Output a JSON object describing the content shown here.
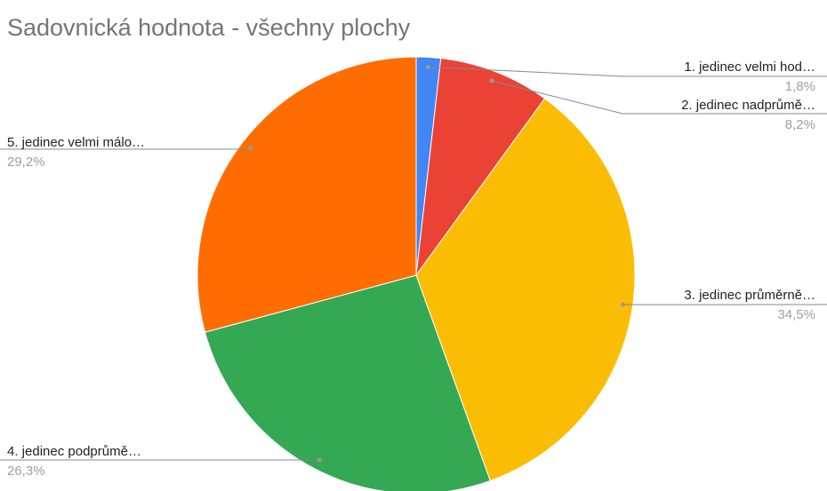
{
  "chart_data": {
    "type": "pie",
    "title": "Sadovnická hodnota - všechny plochy",
    "categories": [
      "1. jedinec velmi hod…",
      "2. jedinec nadprůmě…",
      "3. jedinec průměrně…",
      "4. jedinec podprůmě…",
      "5. jedinec velmi málo…"
    ],
    "values": [
      1.8,
      8.2,
      34.5,
      26.3,
      29.2
    ],
    "value_labels": [
      "1,8%",
      "8,2%",
      "34,5%",
      "26,3%",
      "29,2%"
    ],
    "colors": [
      "#4285f4",
      "#ea4335",
      "#fbbc04",
      "#34a853",
      "#ff6d01"
    ]
  }
}
